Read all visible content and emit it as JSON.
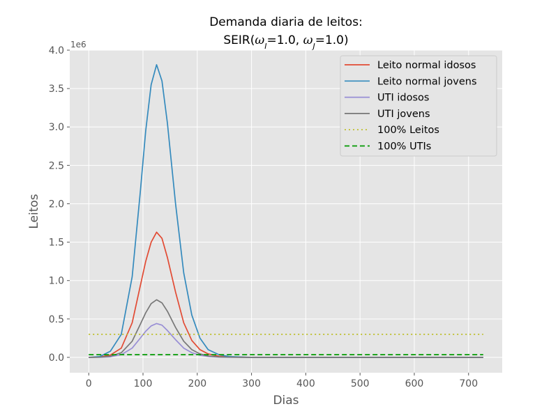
{
  "chart_data": {
    "type": "line",
    "title_line1": "Demanda diaria de leitos:",
    "title_line2_parts": [
      "SEIR(",
      "ω",
      "I",
      "=1.0, ",
      "ω",
      "J",
      "=1.0)"
    ],
    "xlabel": "Dias",
    "ylabel": "Leitos",
    "y_offset_label": "1e6",
    "xlim": [
      -35,
      762
    ],
    "ylim": [
      -0.2,
      4.0
    ],
    "x_ticks": [
      0,
      100,
      200,
      300,
      400,
      500,
      600,
      700
    ],
    "y_ticks": [
      0.0,
      0.5,
      1.0,
      1.5,
      2.0,
      2.5,
      3.0,
      3.5,
      4.0
    ],
    "y_tick_labels": [
      "0.0",
      "0.5",
      "1.0",
      "1.5",
      "2.0",
      "2.5",
      "3.0",
      "3.5",
      "4.0"
    ],
    "grid": true,
    "legend_position": "top-right",
    "series": [
      {
        "name": "Leito normal idosos",
        "color": "#e24a33",
        "style": "solid",
        "x": [
          0,
          20,
          40,
          60,
          80,
          95,
          105,
          115,
          125,
          135,
          145,
          160,
          175,
          190,
          205,
          220,
          240,
          260,
          300,
          400,
          500,
          600,
          727
        ],
        "y": [
          0.0,
          0.005,
          0.03,
          0.12,
          0.45,
          0.93,
          1.25,
          1.5,
          1.63,
          1.55,
          1.3,
          0.85,
          0.45,
          0.22,
          0.1,
          0.045,
          0.015,
          0.005,
          0.0,
          0.0,
          0.0,
          0.0,
          0.0
        ]
      },
      {
        "name": "Leito normal jovens",
        "color": "#348abd",
        "style": "solid",
        "x": [
          0,
          20,
          40,
          60,
          80,
          95,
          105,
          115,
          125,
          135,
          145,
          160,
          175,
          190,
          205,
          220,
          240,
          260,
          300,
          400,
          500,
          600,
          727
        ],
        "y": [
          0.0,
          0.01,
          0.08,
          0.3,
          1.05,
          2.15,
          2.95,
          3.55,
          3.81,
          3.6,
          3.05,
          2.0,
          1.1,
          0.55,
          0.25,
          0.1,
          0.035,
          0.01,
          0.0,
          0.0,
          0.0,
          0.0,
          0.0
        ]
      },
      {
        "name": "UTI idosos",
        "color": "#988ed5",
        "style": "solid",
        "x": [
          0,
          20,
          40,
          60,
          80,
          95,
          105,
          115,
          125,
          135,
          145,
          160,
          175,
          190,
          205,
          220,
          240,
          260,
          300,
          400,
          500,
          600,
          727
        ],
        "y": [
          0.0,
          0.001,
          0.008,
          0.035,
          0.12,
          0.25,
          0.34,
          0.41,
          0.44,
          0.42,
          0.35,
          0.23,
          0.12,
          0.06,
          0.028,
          0.012,
          0.004,
          0.001,
          0.0,
          0.0,
          0.0,
          0.0,
          0.0
        ]
      },
      {
        "name": "UTI jovens",
        "color": "#777777",
        "style": "solid",
        "x": [
          0,
          20,
          40,
          60,
          80,
          95,
          105,
          115,
          125,
          135,
          145,
          160,
          175,
          190,
          205,
          220,
          240,
          260,
          300,
          400,
          500,
          600,
          727
        ],
        "y": [
          0.0,
          0.002,
          0.015,
          0.06,
          0.21,
          0.43,
          0.58,
          0.7,
          0.75,
          0.71,
          0.6,
          0.39,
          0.21,
          0.1,
          0.045,
          0.018,
          0.006,
          0.002,
          0.0,
          0.0,
          0.0,
          0.0,
          0.0
        ]
      },
      {
        "name": "100% Leitos",
        "color": "#bcbd22",
        "style": "dotted",
        "x": [
          0,
          727
        ],
        "y": [
          0.3,
          0.3
        ]
      },
      {
        "name": "100% UTIs",
        "color": "#009900",
        "style": "dashed",
        "x": [
          0,
          727
        ],
        "y": [
          0.035,
          0.035
        ]
      }
    ]
  }
}
